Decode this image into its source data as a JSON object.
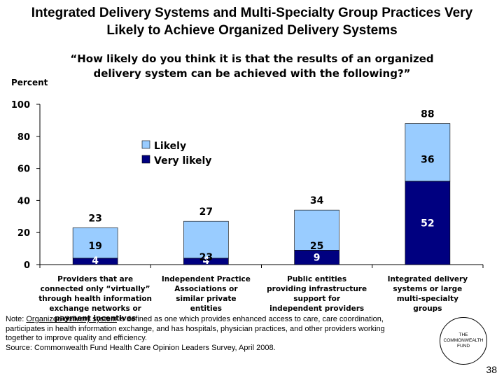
{
  "header": {
    "title_line1": "Integrated Delivery Systems and Multi-Specialty Group Practices Very",
    "title_line2": "Likely to Achieve Organized Delivery Systems",
    "question_line1": "“How likely do you think it is that the results of an organized",
    "question_line2": "delivery system can be achieved with the following?”"
  },
  "chart_data": {
    "type": "bar",
    "stacked": true,
    "ylabel": "Percent",
    "ylim": [
      0,
      100
    ],
    "yticks": [
      0,
      20,
      40,
      60,
      80,
      100
    ],
    "legend_position": "upper-left-center",
    "categories": [
      [
        "Providers that are",
        "connected only “virtually”",
        "through health information",
        "exchange networks or",
        "payment incentives"
      ],
      [
        "Independent Practice",
        "Associations or",
        "similar private",
        "entities"
      ],
      [
        "Public entities",
        "providing infrastructure",
        "support for",
        "independent providers"
      ],
      [
        "Integrated delivery",
        "systems or large",
        "multi-specialty",
        "groups"
      ]
    ],
    "series": [
      {
        "name": "Very likely",
        "color": "#000080",
        "values": [
          4,
          4,
          9,
          52
        ]
      },
      {
        "name": "Likely",
        "color": "#99ccff",
        "values": [
          19,
          23,
          25,
          36
        ]
      }
    ],
    "totals": [
      23,
      27,
      34,
      88
    ]
  },
  "footer": {
    "note_prefix": "Note: ",
    "note_term": "Organized delivery system",
    "note_rest": " is defined as one which provides enhanced access to care, care coordination,",
    "note_line2": "participates in health information exchange, and has hospitals, physician practices, and other providers working",
    "note_line3": "together to improve quality and efficiency.",
    "source": "Source: Commonwealth Fund Health Care Opinion Leaders Survey, April 2008.",
    "logo_line1": "THE",
    "logo_line2": "COMMONWEALTH",
    "logo_line3": "FUND",
    "page_number": "38"
  }
}
